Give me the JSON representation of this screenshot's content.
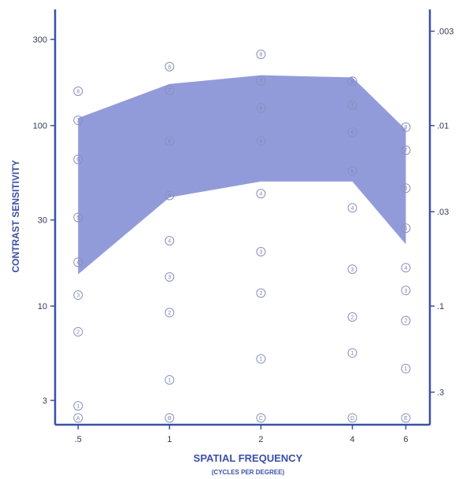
{
  "chart_data": {
    "type": "scatter",
    "xlabel": "SPATIAL FREQUENCY",
    "xlabel_sub": "(CYCLES PER DEGREE)",
    "ylabel": "CONTRAST SENSITIVITY",
    "x_scale": "log",
    "y_scale": "log",
    "x_ticks": [
      0.5,
      1,
      2,
      4,
      6
    ],
    "x_tick_labels": [
      ".5",
      "1",
      "2",
      "4",
      "6"
    ],
    "y_ticks": [
      3,
      10,
      30,
      100,
      300
    ],
    "y_tick_labels": [
      "3",
      "10",
      "30",
      "100",
      "300"
    ],
    "y2_ticks": [
      0.003,
      0.01,
      0.03,
      0.1,
      0.3
    ],
    "y2_tick_labels": [
      ".003",
      ".01",
      ".03",
      ".1",
      ".3"
    ],
    "xlim": [
      0.42,
      7.2
    ],
    "ylim": [
      2.2,
      440
    ],
    "band": {
      "x": [
        0.5,
        1,
        2,
        4,
        6
      ],
      "upper": [
        110,
        170,
        190,
        185,
        95
      ],
      "lower": [
        15,
        40,
        49,
        49,
        22
      ],
      "color": "#7f8ad4"
    },
    "points": [
      {
        "x": 0.5,
        "y": 155,
        "label": "8"
      },
      {
        "x": 0.5,
        "y": 107,
        "label": "7"
      },
      {
        "x": 0.5,
        "y": 65,
        "label": "6"
      },
      {
        "x": 0.5,
        "y": 31,
        "label": "5"
      },
      {
        "x": 0.5,
        "y": 17.5,
        "label": "4"
      },
      {
        "x": 0.5,
        "y": 11.5,
        "label": "3"
      },
      {
        "x": 0.5,
        "y": 7.2,
        "label": "2"
      },
      {
        "x": 0.5,
        "y": 2.8,
        "label": "1"
      },
      {
        "x": 0.5,
        "y": 2.4,
        "label": "A"
      },
      {
        "x": 1,
        "y": 212,
        "label": "8"
      },
      {
        "x": 1,
        "y": 157,
        "label": "7"
      },
      {
        "x": 1,
        "y": 82,
        "label": "6"
      },
      {
        "x": 1,
        "y": 41,
        "label": "5"
      },
      {
        "x": 1,
        "y": 23,
        "label": "4"
      },
      {
        "x": 1,
        "y": 14.5,
        "label": "3"
      },
      {
        "x": 1,
        "y": 9.2,
        "label": "2"
      },
      {
        "x": 1,
        "y": 3.9,
        "label": "1"
      },
      {
        "x": 1,
        "y": 2.4,
        "label": "B"
      },
      {
        "x": 2,
        "y": 248,
        "label": "8"
      },
      {
        "x": 2,
        "y": 177,
        "label": "7"
      },
      {
        "x": 2,
        "y": 125,
        "label": "6"
      },
      {
        "x": 2,
        "y": 82,
        "label": "5"
      },
      {
        "x": 2,
        "y": 42,
        "label": "4"
      },
      {
        "x": 2,
        "y": 20,
        "label": "3"
      },
      {
        "x": 2,
        "y": 11.8,
        "label": "2"
      },
      {
        "x": 2,
        "y": 5.1,
        "label": "1"
      },
      {
        "x": 2,
        "y": 2.4,
        "label": "C"
      },
      {
        "x": 4,
        "y": 176,
        "label": "8"
      },
      {
        "x": 4,
        "y": 130,
        "label": "7"
      },
      {
        "x": 4,
        "y": 92,
        "label": "6"
      },
      {
        "x": 4,
        "y": 56,
        "label": "5"
      },
      {
        "x": 4,
        "y": 35,
        "label": "4"
      },
      {
        "x": 4,
        "y": 16,
        "label": "3"
      },
      {
        "x": 4,
        "y": 8.7,
        "label": "2"
      },
      {
        "x": 4,
        "y": 5.5,
        "label": "1"
      },
      {
        "x": 4,
        "y": 2.4,
        "label": "D"
      },
      {
        "x": 6,
        "y": 98,
        "label": "8"
      },
      {
        "x": 6,
        "y": 73,
        "label": "7"
      },
      {
        "x": 6,
        "y": 45,
        "label": "6"
      },
      {
        "x": 6,
        "y": 27,
        "label": "5"
      },
      {
        "x": 6,
        "y": 16.3,
        "label": "4"
      },
      {
        "x": 6,
        "y": 12.2,
        "label": "3"
      },
      {
        "x": 6,
        "y": 8.3,
        "label": "2"
      },
      {
        "x": 6,
        "y": 4.5,
        "label": "1"
      },
      {
        "x": 6,
        "y": 2.4,
        "label": "E"
      }
    ],
    "axis_color": "#3a4fa8",
    "point_color": "#8a90bd",
    "grid": false
  }
}
